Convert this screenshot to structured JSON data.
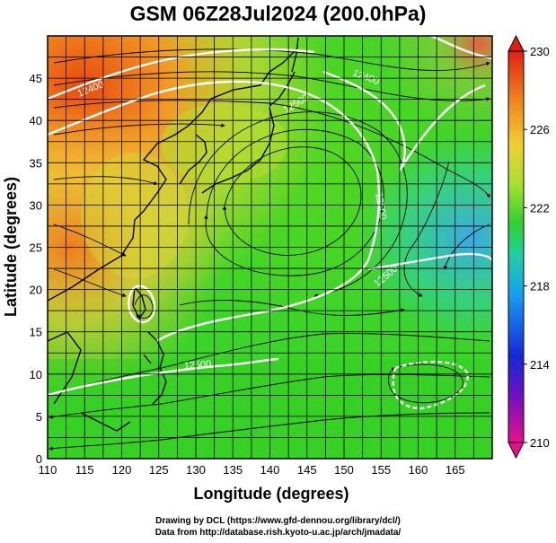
{
  "title": "GSM 06Z28Jul2024 (200.0hPa)",
  "map": {
    "xlabel": "Longitude (degrees)",
    "ylabel": "Latitude (degrees)",
    "xlim": [
      110,
      170
    ],
    "ylim": [
      0,
      50
    ],
    "x_ticks": [
      "110",
      "115",
      "120",
      "125",
      "130",
      "135",
      "140",
      "145",
      "150",
      "155",
      "160",
      "165"
    ],
    "y_ticks": [
      "0",
      "5",
      "10",
      "15",
      "20",
      "25",
      "30",
      "35",
      "40",
      "45"
    ],
    "grid": true,
    "contour_labels": [
      "12400",
      "12400",
      "12500",
      "12500",
      "12500",
      "12500"
    ],
    "shading_field_unit_hint": "temperature (K)",
    "colors": {
      "hot": "#e84010",
      "warm": "#f5c03a",
      "mid": "#40d020",
      "cool": "#30b0e0",
      "contour": "#ffffff"
    }
  },
  "colorbar": {
    "labels": [
      "230",
      "226",
      "222",
      "218",
      "214",
      "210"
    ],
    "range": [
      210,
      230
    ],
    "colors": [
      "#e8108a",
      "#6010c0",
      "#1030d8",
      "#20a0f0",
      "#20d0a0",
      "#30d030",
      "#a8e030",
      "#f0d030",
      "#f08020",
      "#e02010"
    ]
  },
  "credits": {
    "line1": "Drawing by DCL (https://www.gfd-dennou.org/library/dcl/)",
    "line2": "Data from http://database.rish.kyoto-u.ac.jp/arch/jmadata/"
  }
}
